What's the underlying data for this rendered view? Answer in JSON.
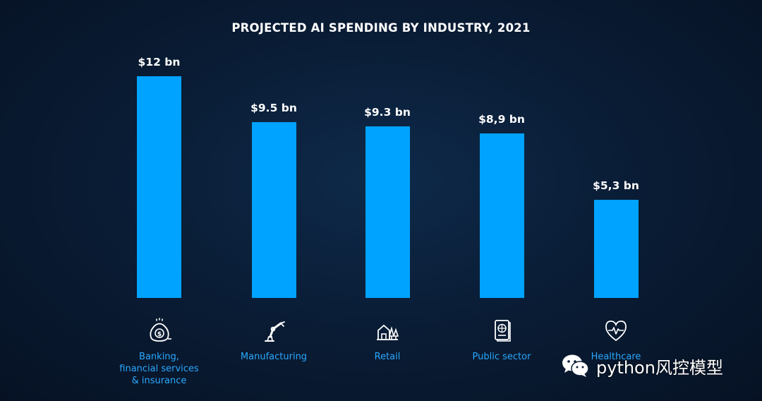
{
  "chart_data": {
    "type": "bar",
    "title": "PROJECTED AI SPENDING BY INDUSTRY, 2021",
    "xlabel": "",
    "ylabel": "",
    "ylim": [
      0,
      12
    ],
    "grid": false,
    "bar_color": "#00a3ff",
    "categories": [
      "Banking,\nfinancial services\n& insurance",
      "Manufacturing",
      "Retail",
      "Public sector",
      "Healthcare"
    ],
    "values": [
      12,
      9.5,
      9.3,
      8.9,
      5.3
    ],
    "data_labels": [
      "$12 bn",
      "$9.5 bn",
      "$9.3 bn",
      "$8,9 bn",
      "$5,3 bn"
    ],
    "icons": [
      "money-bag-icon",
      "robot-arm-icon",
      "store-icon",
      "passport-icon",
      "heartbeat-icon"
    ]
  },
  "watermark": {
    "text": "python风控模型",
    "icon": "wechat-icon"
  }
}
